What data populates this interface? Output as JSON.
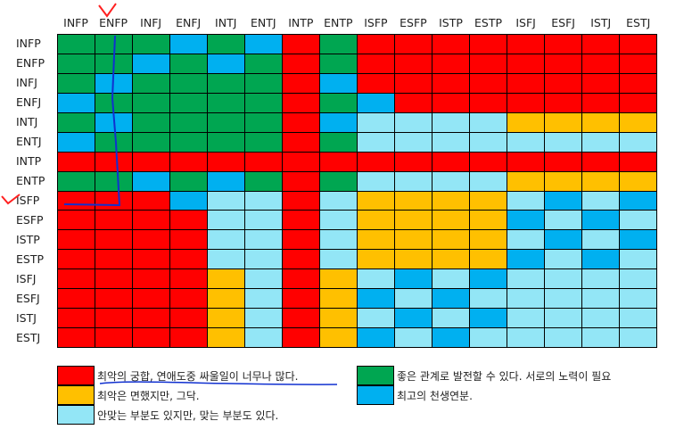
{
  "chart_data": {
    "type": "heatmap",
    "title": "",
    "columns": [
      "INFP",
      "ENFP",
      "INFJ",
      "ENFJ",
      "INTJ",
      "ENTJ",
      "INTP",
      "ENTP",
      "ISFP",
      "ESFP",
      "ISTP",
      "ESTP",
      "ISFJ",
      "ESFJ",
      "ISTJ",
      "ESTJ"
    ],
    "rows": [
      "INFP",
      "ENFP",
      "INFJ",
      "ENFJ",
      "INTJ",
      "ENTJ",
      "INTP",
      "ENTP",
      "ISFP",
      "ESFP",
      "ISTP",
      "ESTP",
      "ISFJ",
      "ESFJ",
      "ISTJ",
      "ESTJ"
    ],
    "matrix": [
      "GGGBGBRGRRRRRRRR",
      "GGBGBGRGRRRRRRRR",
      "GBGGGGRBRRRRRRRR",
      "BGGGGGRGBRRRRRRR",
      "GBGGGGRBLLLLOOOO",
      "BGGGGGRGLLLLLLLL",
      "RRRRRRRRRRRRRRRR",
      "GGBGBGRGLLLLOOOO",
      "RRRBLLRLOOOOLBLB",
      "RRRRLLRLOOOOBLBL",
      "RRRRLLRLOOOOLBLB",
      "RRRRLLRLOOOOBLBL",
      "RRRROLROLBLBLLLL",
      "RRRROLROBLBLLLLL",
      "RRRROLROLBLBLLLL",
      "RRRROLROBLBLLLLL"
    ],
    "legend": [
      {
        "key": "R",
        "color": "#ff0000",
        "label": "최악의 궁합, 연애도중 싸울일이 너무나 많다."
      },
      {
        "key": "O",
        "color": "#ffc000",
        "label": "최악은 면했지만, 그닥."
      },
      {
        "key": "L",
        "color": "#93e6f6",
        "label": "안맞는 부분도 있지만, 맞는 부분도 있다."
      },
      {
        "key": "G",
        "color": "#00a651",
        "label": "좋은 관계로 발전할 수 있다. 서로의 노력이 필요"
      },
      {
        "key": "B",
        "color": "#00b0f0",
        "label": "최고의 천생연분."
      }
    ]
  },
  "legend": {
    "red": "최악의 궁합, 연애도중 싸울일이 너무나 많다.",
    "orange": "최악은 면했지만, 그닥.",
    "light": "안맞는 부분도 있지만, 맞는 부분도 있다.",
    "green": "좋은 관계로 발전할 수 있다. 서로의 노력이 필요",
    "blue": "최고의 천생연분."
  },
  "annotations": {
    "highlighted_column": "ENFP",
    "highlighted_row": "ISFP",
    "mark_color": "#ff2020",
    "line_color": "#1030d0"
  }
}
